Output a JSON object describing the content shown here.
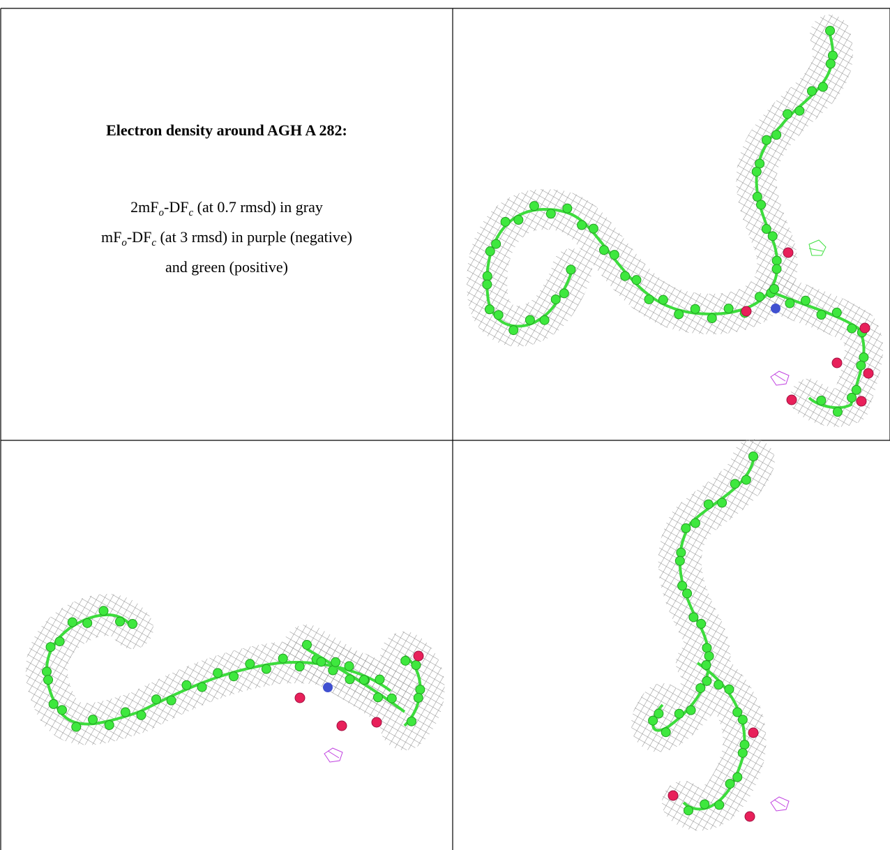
{
  "caption": {
    "title": "Electron density around AGH A 282:",
    "lines": [
      [
        {
          "text": "2mF"
        },
        {
          "sub": "o"
        },
        {
          "text": "-DF"
        },
        {
          "sub": "c"
        },
        {
          "text": " (at 0.7 rmsd) in gray"
        }
      ],
      [
        {
          "text": "mF"
        },
        {
          "sub": "o"
        },
        {
          "text": "-DF"
        },
        {
          "sub": "c"
        },
        {
          "text": " (at 3 rmsd) in purple (negative)"
        }
      ],
      [
        {
          "text": "and green (positive)"
        }
      ]
    ]
  }
}
